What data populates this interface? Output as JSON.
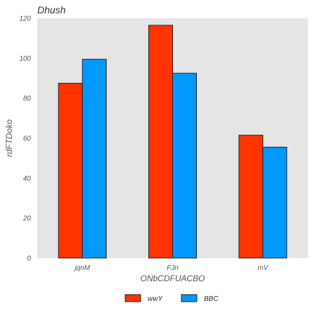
{
  "chart_data": {
    "type": "bar",
    "title": "Dhush",
    "xlabel": "ONbCDFUACBO",
    "ylabel": "rdFTDoko",
    "categories": [
      "jqnM",
      "FJn",
      "mV"
    ],
    "series": [
      {
        "name": "wwY",
        "values": [
          87.5,
          116.5,
          61.5
        ]
      },
      {
        "name": "BBC",
        "values": [
          99.5,
          92.5,
          55.5
        ]
      }
    ],
    "ylim": [
      0,
      120
    ],
    "yticks": [
      0,
      20,
      40,
      60,
      80,
      100,
      120
    ],
    "grid": false,
    "legend_position": "bottom-center",
    "colors": {
      "series": [
        "#ff3300",
        "#0099ff"
      ],
      "plot_background": "#e5e5e5",
      "bar_edge": "#222222"
    }
  }
}
